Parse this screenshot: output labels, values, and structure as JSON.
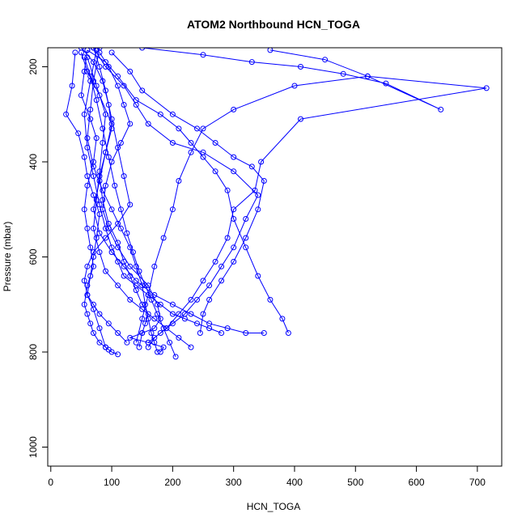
{
  "chart_data": {
    "type": "line",
    "title": "ATOM2 Northbound HCN_TOGA",
    "xlabel": "HCN_TOGA",
    "ylabel": "Pressure (mbar)",
    "xlim": [
      -5,
      740
    ],
    "ylim": [
      1040,
      160
    ],
    "y_reversed": true,
    "x_ticks": [
      0,
      100,
      200,
      300,
      400,
      500,
      600,
      700
    ],
    "y_ticks": [
      200,
      400,
      600,
      800,
      1000
    ],
    "grid": false,
    "legend": "none",
    "color": "#0000ff",
    "marker": "open-circle",
    "series": [
      {
        "x": [
          80,
          95,
          110,
          120,
          130,
          115,
          100,
          90,
          85,
          95,
          110,
          130,
          160,
          175,
          180,
          170,
          150,
          130,
          160,
          185,
          180
        ],
        "y": [
          170,
          200,
          240,
          280,
          320,
          360,
          400,
          450,
          500,
          540,
          580,
          620,
          660,
          700,
          730,
          750,
          760,
          770,
          780,
          790,
          800
        ]
      },
      {
        "x": [
          150,
          250,
          330,
          410,
          480,
          550,
          640,
          520,
          400,
          300,
          250,
          230,
          210,
          200,
          185,
          170,
          160,
          150,
          140
        ],
        "y": [
          160,
          175,
          190,
          200,
          215,
          235,
          290,
          220,
          240,
          290,
          330,
          380,
          440,
          500,
          560,
          620,
          680,
          730,
          780
        ]
      },
      {
        "x": [
          360,
          450,
          520,
          715,
          410,
          345,
          335,
          300,
          290,
          270,
          250,
          230,
          210,
          190,
          170,
          160
        ],
        "y": [
          165,
          185,
          220,
          245,
          310,
          400,
          460,
          500,
          560,
          610,
          650,
          690,
          720,
          750,
          770,
          790
        ]
      },
      {
        "x": [
          60,
          55,
          50,
          65,
          75,
          70,
          60,
          55,
          60,
          65,
          70,
          60,
          55,
          60,
          65,
          70,
          80,
          90,
          95,
          100,
          110
        ],
        "y": [
          165,
          210,
          260,
          310,
          350,
          400,
          450,
          500,
          540,
          580,
          620,
          660,
          700,
          720,
          740,
          760,
          780,
          790,
          795,
          800,
          805
        ]
      },
      {
        "x": [
          70,
          90,
          120,
          140,
          160,
          200,
          250,
          300,
          340,
          320,
          300,
          280,
          260,
          240,
          220,
          200,
          180,
          160
        ],
        "y": [
          160,
          200,
          240,
          280,
          320,
          360,
          380,
          420,
          470,
          520,
          580,
          620,
          660,
          690,
          720,
          740,
          760,
          780
        ]
      },
      {
        "x": [
          50,
          70,
          85,
          95,
          100,
          90,
          80,
          85,
          95,
          110,
          120,
          130,
          140,
          150,
          160,
          155,
          150,
          145
        ],
        "y": [
          160,
          190,
          230,
          280,
          330,
          380,
          430,
          480,
          530,
          570,
          610,
          640,
          670,
          700,
          720,
          740,
          760,
          790
        ]
      },
      {
        "x": [
          40,
          35,
          25,
          45,
          55,
          60,
          70,
          80,
          75,
          70,
          65,
          60,
          70,
          80,
          90
        ],
        "y": [
          170,
          240,
          300,
          340,
          390,
          430,
          470,
          510,
          560,
          600,
          640,
          680,
          710,
          750,
          790
        ]
      },
      {
        "x": [
          100,
          130,
          150,
          200,
          240,
          270,
          300,
          330,
          350,
          340,
          320,
          300,
          280,
          260,
          250,
          245
        ],
        "y": [
          170,
          210,
          250,
          300,
          330,
          360,
          390,
          410,
          440,
          500,
          560,
          610,
          650,
          690,
          720,
          760
        ]
      },
      {
        "x": [
          60,
          90,
          110,
          140,
          180,
          210,
          230,
          250,
          270,
          290,
          300,
          320,
          340,
          360,
          380,
          390
        ],
        "y": [
          165,
          190,
          220,
          270,
          300,
          330,
          360,
          390,
          420,
          460,
          520,
          580,
          640,
          690,
          730,
          760
        ]
      },
      {
        "x": [
          80,
          70,
          65,
          60,
          70,
          85,
          100,
          115,
          130,
          140,
          150,
          155,
          160,
          165,
          170,
          175
        ],
        "y": [
          160,
          230,
          290,
          350,
          410,
          460,
          500,
          540,
          580,
          620,
          660,
          700,
          730,
          760,
          780,
          800
        ]
      },
      {
        "x": [
          55,
          65,
          75,
          85,
          95,
          105,
          115,
          125,
          135,
          145,
          155,
          165,
          175,
          185,
          195,
          205
        ],
        "y": [
          180,
          220,
          270,
          330,
          390,
          450,
          500,
          550,
          590,
          630,
          660,
          690,
          720,
          750,
          780,
          810
        ]
      },
      {
        "x": [
          70,
          80,
          90,
          100,
          110,
          120,
          130,
          110,
          90,
          70,
          60,
          55,
          60,
          70,
          80,
          95,
          110,
          125
        ],
        "y": [
          160,
          200,
          250,
          310,
          370,
          430,
          490,
          530,
          560,
          590,
          620,
          650,
          680,
          700,
          720,
          740,
          760,
          780
        ]
      },
      {
        "x": [
          50,
          60,
          80,
          100,
          90,
          80,
          70,
          80,
          100,
          120,
          140,
          170,
          200,
          230,
          260,
          290,
          320,
          350
        ],
        "y": [
          170,
          210,
          260,
          320,
          380,
          440,
          500,
          550,
          590,
          620,
          650,
          680,
          700,
          720,
          740,
          750,
          760,
          760
        ]
      },
      {
        "x": [
          60,
          75,
          90,
          85,
          80,
          75,
          70,
          80,
          90,
          110,
          130,
          150,
          170,
          190,
          210,
          230
        ],
        "y": [
          180,
          240,
          300,
          360,
          420,
          480,
          540,
          590,
          630,
          660,
          690,
          710,
          730,
          750,
          770,
          790
        ]
      },
      {
        "x": [
          75,
          65,
          55,
          60,
          70,
          80,
          90,
          100,
          110,
          120,
          140,
          160,
          180,
          200,
          220,
          240,
          260,
          280
        ],
        "y": [
          165,
          230,
          300,
          370,
          430,
          490,
          540,
          580,
          610,
          640,
          660,
          680,
          700,
          720,
          730,
          740,
          750,
          760
        ]
      }
    ]
  }
}
